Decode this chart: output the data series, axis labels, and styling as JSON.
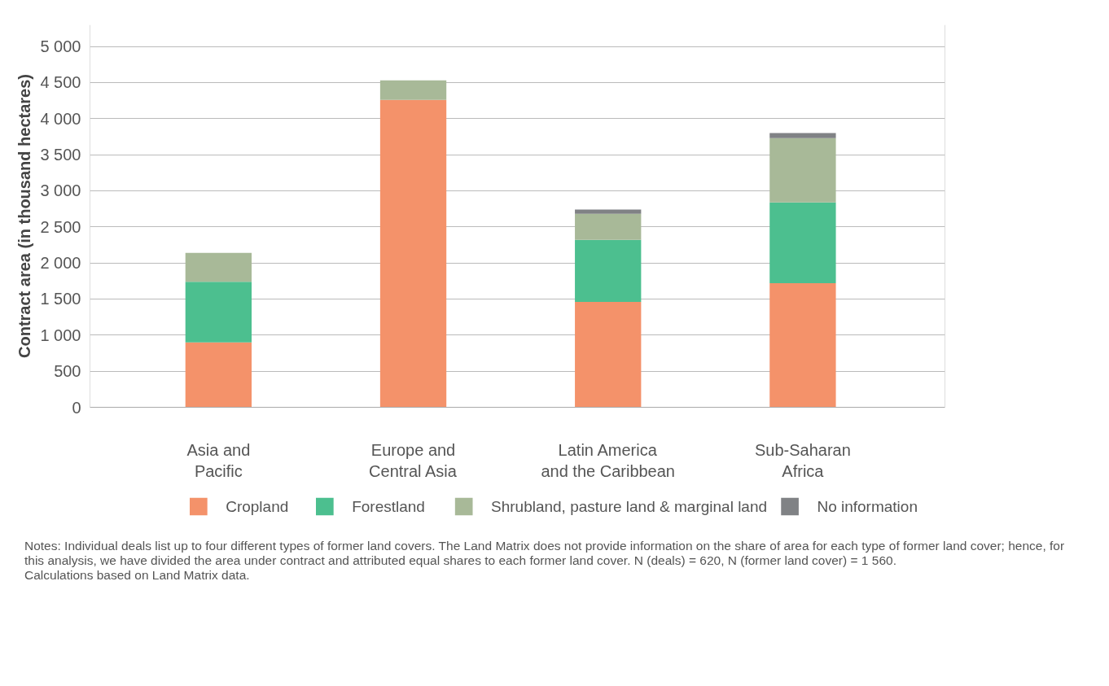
{
  "chart_data": {
    "type": "bar",
    "stacked": true,
    "ylabel": "Contract area (in thousand hectares)",
    "categories": [
      "Asia and Pacific",
      "Europe and Central Asia",
      "Latin America and the Caribbean",
      "Sub-Saharan Africa"
    ],
    "series": [
      {
        "name": "Cropland",
        "color": "#f4926a",
        "values": [
          900,
          4260,
          1460,
          1720
        ]
      },
      {
        "name": "Forestland",
        "color": "#4cbf8f",
        "values": [
          840,
          0,
          860,
          1120
        ]
      },
      {
        "name": "Shrubland, pasture land & marginal land",
        "color": "#a8b998",
        "values": [
          400,
          270,
          360,
          890
        ]
      },
      {
        "name": "No information",
        "color": "#808285",
        "values": [
          0,
          0,
          60,
          70
        ]
      }
    ],
    "ylim": [
      0,
      5300
    ],
    "yticks": [
      {
        "value": 0,
        "label": "0"
      },
      {
        "value": 500,
        "label": "500"
      },
      {
        "value": 1000,
        "label": "1 000"
      },
      {
        "value": 1500,
        "label": "1 500"
      },
      {
        "value": 2000,
        "label": "2 000"
      },
      {
        "value": 2500,
        "label": "2 500"
      },
      {
        "value": 3000,
        "label": "3 000"
      },
      {
        "value": 3500,
        "label": "3 500"
      },
      {
        "value": 4000,
        "label": "4 000"
      },
      {
        "value": 4500,
        "label": "4 500"
      },
      {
        "value": 5000,
        "label": "5 000"
      }
    ],
    "grid": "y",
    "legend": "bottom",
    "annotations": [
      "Notes: Individual deals list up to four different types of former land covers. The Land Matrix does not provide information on the share of area for each type of former land cover; hence, for this analysis, we have divided the area under contract and attributed equal shares to each former land cover. N (deals) = 620, N (former land cover) = 1 560.",
      "Calculations based on Land Matrix data."
    ]
  }
}
